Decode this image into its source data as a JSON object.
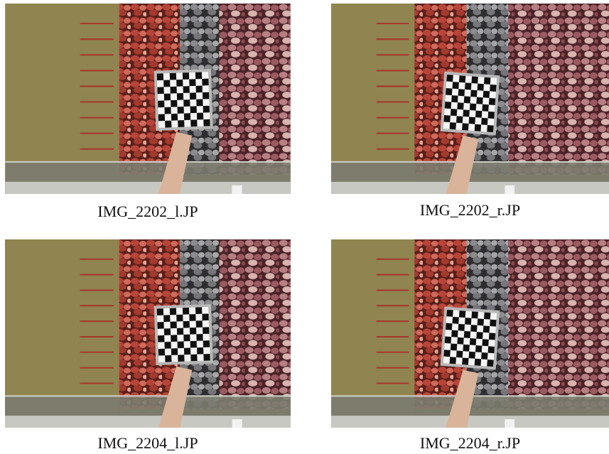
{
  "figures": [
    {
      "caption": "IMG_2202_l.JP"
    },
    {
      "caption": "IMG_2202_r.JP"
    },
    {
      "caption": "IMG_2204_l.JP"
    },
    {
      "caption": "IMG_2204_r.JP"
    }
  ]
}
